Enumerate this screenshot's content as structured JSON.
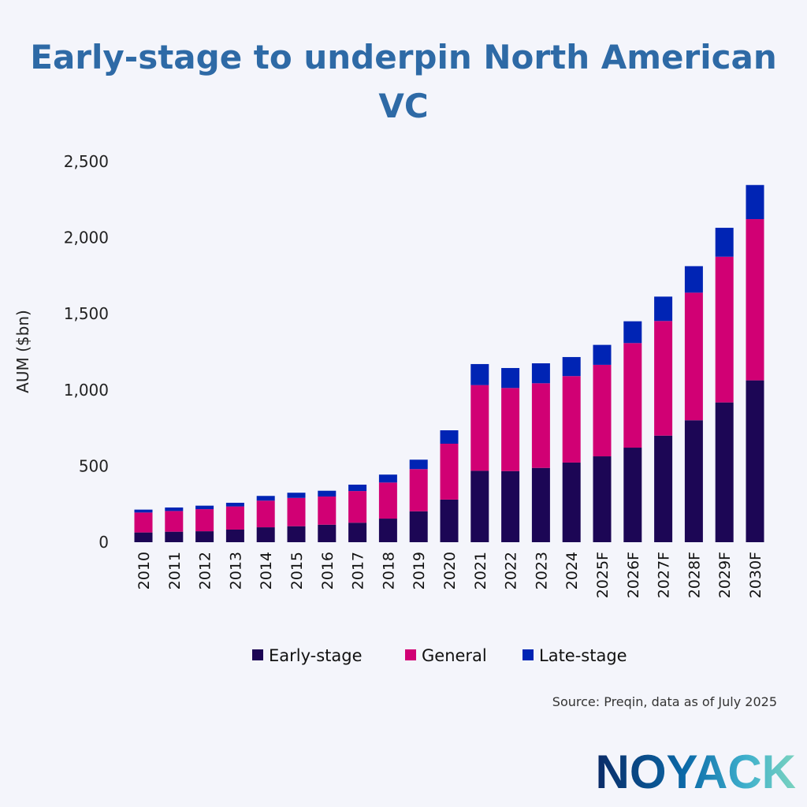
{
  "title": "Early-stage to underpin North American VC",
  "source": "Source: Preqin, data as of July 2025",
  "logo": "NOYACK",
  "chart_data": {
    "type": "bar",
    "stacked": true,
    "title": "Early-stage to underpin North American VC",
    "xlabel": "",
    "ylabel": "AUM ($bn)",
    "ylim": [
      0,
      2500
    ],
    "yticks": [
      0,
      500,
      1000,
      1500,
      2000,
      2500
    ],
    "ytick_labels": [
      "0",
      "500",
      "1,000",
      "1,500",
      "2,000",
      "2,500"
    ],
    "grid": false,
    "legend_position": "bottom",
    "categories": [
      "2010",
      "2011",
      "2012",
      "2013",
      "2014",
      "2015",
      "2016",
      "2017",
      "2018",
      "2019",
      "2020",
      "2021",
      "2022",
      "2023",
      "2024",
      "2025F",
      "2026F",
      "2027F",
      "2028F",
      "2029F",
      "2030F"
    ],
    "series": [
      {
        "name": "Early-stage",
        "color": "#1c0655",
        "values": [
          64,
          69,
          72,
          83,
          98,
          105,
          115,
          128,
          155,
          203,
          280,
          469,
          467,
          488,
          523,
          564,
          621,
          700,
          801,
          918,
          1063
        ]
      },
      {
        "name": "General",
        "color": "#d10074",
        "values": [
          131,
          136,
          145,
          152,
          175,
          186,
          185,
          208,
          237,
          277,
          367,
          563,
          546,
          556,
          568,
          601,
          687,
          753,
          838,
          957,
          1059
        ]
      },
      {
        "name": "Late-stage",
        "color": "#0024b4",
        "values": [
          19,
          23,
          23,
          24,
          31,
          34,
          38,
          42,
          52,
          62,
          88,
          138,
          131,
          131,
          125,
          131,
          143,
          160,
          174,
          190,
          224
        ]
      }
    ]
  }
}
